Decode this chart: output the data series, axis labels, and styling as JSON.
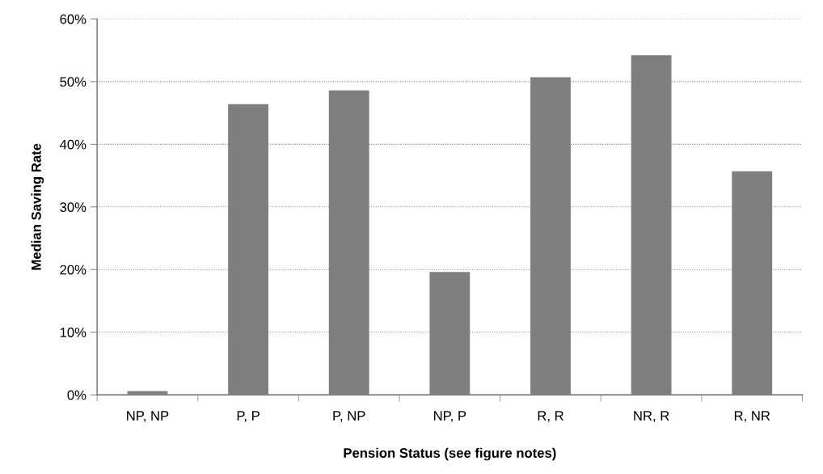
{
  "chart_data": {
    "type": "bar",
    "xlabel": "Pension Status (see figure notes)",
    "ylabel": "Median Saving Rate",
    "categories": [
      "NP, NP",
      "P, P",
      "P, NP",
      "NP, P",
      "R, R",
      "NR, R",
      "R, NR"
    ],
    "values": [
      0.6,
      46.4,
      48.6,
      19.6,
      50.7,
      54.2,
      35.7
    ],
    "color": "#7f7f7f",
    "ylim": [
      0,
      60
    ],
    "yticks": [
      {
        "value": 0,
        "label": "0%"
      },
      {
        "value": 10,
        "label": "10%"
      },
      {
        "value": 20,
        "label": "20%"
      },
      {
        "value": 30,
        "label": "30%"
      },
      {
        "value": 40,
        "label": "40%"
      },
      {
        "value": 50,
        "label": "50%"
      },
      {
        "value": 60,
        "label": "60%"
      }
    ],
    "grid": "y",
    "legend": false
  }
}
